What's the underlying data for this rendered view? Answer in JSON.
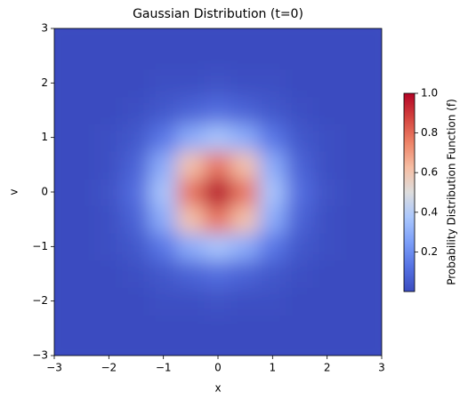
{
  "chart_data": {
    "type": "heatmap",
    "title": "Gaussian Distribution (t=0)",
    "xlabel": "x",
    "ylabel": "v",
    "colorbar_label": "Probability Distribution Function (f)",
    "colormap": "coolwarm",
    "x": [
      -3,
      -2.5,
      -2,
      -1.5,
      -1,
      -0.5,
      0,
      0.5,
      1,
      1.5,
      2,
      2.5,
      3
    ],
    "y": [
      -3,
      -2.5,
      -2,
      -1.5,
      -1,
      -0.5,
      0,
      0.5,
      1,
      1.5,
      2,
      2.5,
      3
    ],
    "z": [
      [
        0,
        0,
        0,
        0,
        0,
        0,
        0,
        0,
        0,
        0,
        0,
        0,
        0
      ],
      [
        0,
        0,
        0,
        0,
        0,
        0,
        0,
        0,
        0,
        0,
        0,
        0,
        0
      ],
      [
        0,
        0,
        0,
        0,
        0.01,
        0.01,
        0.02,
        0.01,
        0.01,
        0,
        0,
        0,
        0
      ],
      [
        0,
        0,
        0,
        0.01,
        0.04,
        0.08,
        0.11,
        0.08,
        0.04,
        0.01,
        0,
        0,
        0
      ],
      [
        0,
        0,
        0.01,
        0.04,
        0.14,
        0.29,
        0.37,
        0.29,
        0.14,
        0.04,
        0.01,
        0,
        0
      ],
      [
        0,
        0,
        0.01,
        0.08,
        0.29,
        0.61,
        0.78,
        0.61,
        0.29,
        0.08,
        0.01,
        0,
        0
      ],
      [
        0,
        0,
        0.02,
        0.11,
        0.37,
        0.78,
        1,
        0.78,
        0.37,
        0.11,
        0.02,
        0,
        0
      ],
      [
        0,
        0,
        0.01,
        0.08,
        0.29,
        0.61,
        0.78,
        0.61,
        0.29,
        0.08,
        0.01,
        0,
        0
      ],
      [
        0,
        0,
        0.01,
        0.04,
        0.14,
        0.29,
        0.37,
        0.29,
        0.14,
        0.04,
        0.01,
        0,
        0
      ],
      [
        0,
        0,
        0,
        0.01,
        0.04,
        0.08,
        0.11,
        0.08,
        0.04,
        0.01,
        0,
        0,
        0
      ],
      [
        0,
        0,
        0,
        0,
        0.01,
        0.01,
        0.02,
        0.01,
        0.01,
        0,
        0,
        0,
        0
      ],
      [
        0,
        0,
        0,
        0,
        0,
        0,
        0,
        0,
        0,
        0,
        0,
        0,
        0
      ],
      [
        0,
        0,
        0,
        0,
        0,
        0,
        0,
        0,
        0,
        0,
        0,
        0,
        0
      ]
    ],
    "xlim": [
      -3,
      3
    ],
    "ylim": [
      -3,
      3
    ],
    "xticks": [
      {
        "value": -3,
        "label": "−3"
      },
      {
        "value": -2,
        "label": "−2"
      },
      {
        "value": -1,
        "label": "−1"
      },
      0,
      1,
      2,
      3
    ],
    "yticks": [
      {
        "value": -3,
        "label": "−3"
      },
      {
        "value": -2,
        "label": "−2"
      },
      {
        "value": -1,
        "label": "−1"
      },
      0,
      1,
      2,
      3
    ],
    "clim": [
      0,
      1
    ],
    "cticks": [
      0.2,
      0.4,
      0.6,
      0.8,
      {
        "value": 1,
        "label": "1.0"
      }
    ]
  }
}
